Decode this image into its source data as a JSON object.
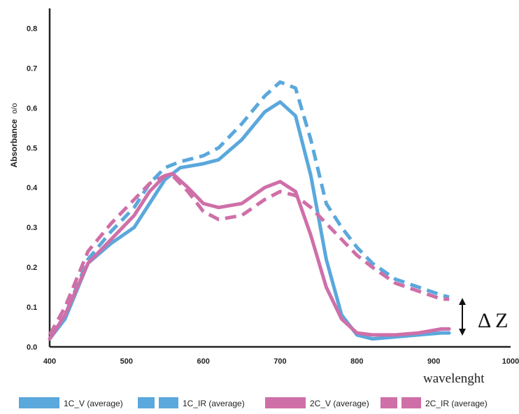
{
  "chart_data": {
    "type": "line",
    "title": "",
    "xlabel": "wavelenght",
    "ylabel": "Absorbance",
    "ylabel_unit": "o/o",
    "xlim": [
      400,
      1000
    ],
    "ylim": [
      0,
      0.85
    ],
    "x_ticks": [
      "400",
      "500",
      "600",
      "700",
      "800",
      "900",
      "1000"
    ],
    "y_ticks": [
      "0.0",
      "0.1",
      "0.2",
      "0.3",
      "0.4",
      "0.5",
      "0.6",
      "0.7",
      "0.8"
    ],
    "grid": false,
    "legend_position": "bottom",
    "annotation": "Δ Z",
    "series": [
      {
        "name": "1C_V (average)",
        "color": "#5aa8dc",
        "style": "solid",
        "x": [
          400,
          420,
          450,
          480,
          510,
          530,
          550,
          570,
          600,
          620,
          650,
          680,
          700,
          720,
          740,
          760,
          780,
          800,
          820,
          850,
          880,
          910,
          920
        ],
        "y": [
          0.02,
          0.07,
          0.21,
          0.26,
          0.3,
          0.36,
          0.42,
          0.45,
          0.46,
          0.47,
          0.52,
          0.59,
          0.615,
          0.58,
          0.43,
          0.22,
          0.08,
          0.03,
          0.02,
          0.025,
          0.03,
          0.035,
          0.035
        ]
      },
      {
        "name": "1C_IR (average)",
        "color": "#5aa8dc",
        "style": "dashed",
        "x": [
          400,
          420,
          450,
          480,
          510,
          530,
          550,
          570,
          600,
          620,
          650,
          680,
          700,
          720,
          740,
          760,
          780,
          800,
          820,
          850,
          880,
          910,
          920
        ],
        "y": [
          0.02,
          0.08,
          0.22,
          0.29,
          0.35,
          0.41,
          0.45,
          0.465,
          0.48,
          0.5,
          0.56,
          0.63,
          0.665,
          0.65,
          0.52,
          0.36,
          0.3,
          0.25,
          0.21,
          0.17,
          0.15,
          0.13,
          0.125
        ]
      },
      {
        "name": "2C_V (average)",
        "color": "#cf6fa8",
        "style": "solid",
        "x": [
          400,
          420,
          450,
          480,
          510,
          530,
          550,
          560,
          580,
          600,
          620,
          650,
          680,
          700,
          720,
          740,
          760,
          780,
          800,
          820,
          850,
          880,
          910,
          920
        ],
        "y": [
          0.02,
          0.08,
          0.21,
          0.27,
          0.33,
          0.39,
          0.43,
          0.435,
          0.4,
          0.36,
          0.35,
          0.36,
          0.4,
          0.415,
          0.39,
          0.28,
          0.15,
          0.07,
          0.035,
          0.03,
          0.03,
          0.035,
          0.045,
          0.045
        ]
      },
      {
        "name": "2C_IR (average)",
        "color": "#cf6fa8",
        "style": "dashed",
        "x": [
          400,
          420,
          450,
          480,
          510,
          530,
          550,
          560,
          580,
          600,
          620,
          650,
          680,
          700,
          720,
          740,
          760,
          780,
          800,
          820,
          850,
          880,
          910,
          920
        ],
        "y": [
          0.03,
          0.1,
          0.24,
          0.31,
          0.37,
          0.41,
          0.43,
          0.43,
          0.39,
          0.34,
          0.32,
          0.33,
          0.37,
          0.39,
          0.38,
          0.35,
          0.31,
          0.27,
          0.23,
          0.2,
          0.16,
          0.14,
          0.12,
          0.12
        ]
      }
    ]
  }
}
